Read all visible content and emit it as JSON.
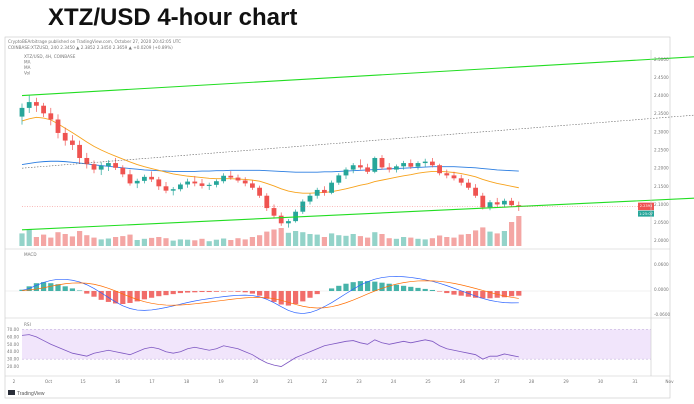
{
  "headline": "XTZ/USD 4-hour chart",
  "header_lines": {
    "publisher": "CryptoBEArbitrage published on TradingView.com, October 27, 2020 20:42:05 UTC",
    "symbol_line": "COINBASE:XTZUSD, 240  2.3450 ▲ 2.3852  2.3450  2.3659 ▲ +0.0209 (+0.89%)"
  },
  "legend": [
    "XTZ/USD, 4H, COINBASE",
    "MA",
    "MA",
    "Vol"
  ],
  "panes": {
    "macd_label": "MACD",
    "rsi_label": "RSI"
  },
  "price_labels": [
    "2.2393",
    "1:25:07"
  ],
  "branding": "TradingView",
  "colors": {
    "up": "#26a69a",
    "down": "#ef5350",
    "vol_up": "#93d3c9",
    "vol_down": "#f4a6a4",
    "ma_fast": "#f7a21b",
    "ma_slow": "#2a7de1",
    "channel": "#22dd22",
    "macd_line": "#2962ff",
    "signal_line": "#ff6d00",
    "rsi_line": "#7e57c2",
    "rsi_bg": "#f1e5fb"
  },
  "chart_data": {
    "type": "candlestick",
    "title": "XTZ/USD 4-hour chart",
    "x_ticks": [
      "2",
      "Oct",
      "15",
      "16",
      "17",
      "18",
      "19",
      "20",
      "21",
      "22",
      "23",
      "24",
      "25",
      "26",
      "27",
      "28",
      "29",
      "30",
      "31",
      "Nov",
      "2"
    ],
    "y_ticks": [
      "2.5000",
      "2.4500",
      "2.4000",
      "2.3500",
      "2.3000",
      "2.2500",
      "2.2000",
      "2.1500",
      "2.1000",
      "2.0500",
      "2.0000"
    ],
    "ylim": [
      1.98,
      2.52
    ],
    "candles": [
      [
        2.342,
        2.378,
        2.32,
        2.366
      ],
      [
        2.366,
        2.4,
        2.352,
        2.382
      ],
      [
        2.382,
        2.394,
        2.355,
        2.372
      ],
      [
        2.372,
        2.38,
        2.341,
        2.351
      ],
      [
        2.351,
        2.366,
        2.318,
        2.334
      ],
      [
        2.334,
        2.348,
        2.282,
        2.297
      ],
      [
        2.297,
        2.312,
        2.262,
        2.276
      ],
      [
        2.276,
        2.291,
        2.25,
        2.264
      ],
      [
        2.264,
        2.276,
        2.214,
        2.228
      ],
      [
        2.228,
        2.242,
        2.199,
        2.211
      ],
      [
        2.211,
        2.221,
        2.186,
        2.196
      ],
      [
        2.196,
        2.216,
        2.181,
        2.206
      ],
      [
        2.206,
        2.222,
        2.192,
        2.214
      ],
      [
        2.214,
        2.228,
        2.195,
        2.201
      ],
      [
        2.201,
        2.208,
        2.175,
        2.183
      ],
      [
        2.183,
        2.196,
        2.152,
        2.158
      ],
      [
        2.158,
        2.171,
        2.145,
        2.165
      ],
      [
        2.165,
        2.182,
        2.158,
        2.176
      ],
      [
        2.176,
        2.191,
        2.162,
        2.169
      ],
      [
        2.169,
        2.176,
        2.14,
        2.15
      ],
      [
        2.15,
        2.162,
        2.131,
        2.138
      ],
      [
        2.138,
        2.148,
        2.125,
        2.142
      ],
      [
        2.142,
        2.16,
        2.136,
        2.155
      ],
      [
        2.155,
        2.171,
        2.146,
        2.163
      ],
      [
        2.163,
        2.178,
        2.15,
        2.158
      ],
      [
        2.158,
        2.17,
        2.144,
        2.151
      ],
      [
        2.151,
        2.16,
        2.14,
        2.154
      ],
      [
        2.154,
        2.169,
        2.147,
        2.164
      ],
      [
        2.164,
        2.186,
        2.158,
        2.179
      ],
      [
        2.179,
        2.192,
        2.168,
        2.174
      ],
      [
        2.174,
        2.182,
        2.16,
        2.166
      ],
      [
        2.166,
        2.175,
        2.15,
        2.158
      ],
      [
        2.158,
        2.166,
        2.14,
        2.146
      ],
      [
        2.146,
        2.152,
        2.118,
        2.124
      ],
      [
        2.124,
        2.131,
        2.082,
        2.09
      ],
      [
        2.09,
        2.1,
        2.061,
        2.069
      ],
      [
        2.069,
        2.078,
        2.041,
        2.048
      ],
      [
        2.048,
        2.06,
        2.036,
        2.054
      ],
      [
        2.054,
        2.086,
        2.05,
        2.08
      ],
      [
        2.08,
        2.114,
        2.074,
        2.108
      ],
      [
        2.108,
        2.13,
        2.1,
        2.124
      ],
      [
        2.124,
        2.146,
        2.116,
        2.14
      ],
      [
        2.14,
        2.15,
        2.124,
        2.132
      ],
      [
        2.132,
        2.166,
        2.128,
        2.16
      ],
      [
        2.16,
        2.186,
        2.154,
        2.18
      ],
      [
        2.18,
        2.202,
        2.17,
        2.196
      ],
      [
        2.196,
        2.214,
        2.186,
        2.208
      ],
      [
        2.208,
        2.224,
        2.196,
        2.202
      ],
      [
        2.202,
        2.212,
        2.184,
        2.19
      ],
      [
        2.19,
        2.232,
        2.186,
        2.228
      ],
      [
        2.228,
        2.236,
        2.196,
        2.202
      ],
      [
        2.202,
        2.214,
        2.188,
        2.196
      ],
      [
        2.196,
        2.21,
        2.188,
        2.205
      ],
      [
        2.205,
        2.22,
        2.196,
        2.214
      ],
      [
        2.214,
        2.224,
        2.198,
        2.204
      ],
      [
        2.204,
        2.219,
        2.196,
        2.214
      ],
      [
        2.214,
        2.226,
        2.204,
        2.218
      ],
      [
        2.218,
        2.228,
        2.202,
        2.208
      ],
      [
        2.208,
        2.212,
        2.18,
        2.186
      ],
      [
        2.186,
        2.196,
        2.172,
        2.18
      ],
      [
        2.18,
        2.19,
        2.166,
        2.172
      ],
      [
        2.172,
        2.182,
        2.152,
        2.16
      ],
      [
        2.16,
        2.17,
        2.14,
        2.146
      ],
      [
        2.146,
        2.156,
        2.118,
        2.124
      ],
      [
        2.124,
        2.132,
        2.086,
        2.092
      ],
      [
        2.092,
        2.112,
        2.084,
        2.106
      ],
      [
        2.106,
        2.118,
        2.094,
        2.1
      ],
      [
        2.1,
        2.116,
        2.092,
        2.11
      ],
      [
        2.11,
        2.118,
        2.094,
        2.098
      ],
      [
        2.098,
        2.108,
        2.082,
        2.094
      ]
    ],
    "volume": [
      0.42,
      0.55,
      0.3,
      0.38,
      0.28,
      0.46,
      0.4,
      0.32,
      0.5,
      0.36,
      0.28,
      0.22,
      0.25,
      0.3,
      0.33,
      0.38,
      0.2,
      0.24,
      0.27,
      0.3,
      0.26,
      0.18,
      0.22,
      0.21,
      0.19,
      0.24,
      0.16,
      0.21,
      0.25,
      0.2,
      0.26,
      0.22,
      0.3,
      0.36,
      0.48,
      0.55,
      0.6,
      0.44,
      0.5,
      0.46,
      0.4,
      0.38,
      0.3,
      0.42,
      0.36,
      0.34,
      0.4,
      0.33,
      0.28,
      0.46,
      0.4,
      0.26,
      0.24,
      0.3,
      0.28,
      0.24,
      0.22,
      0.26,
      0.35,
      0.3,
      0.28,
      0.38,
      0.4,
      0.52,
      0.62,
      0.48,
      0.42,
      0.5,
      0.8,
      1.0
    ],
    "ma_fast": [
      2.33,
      2.336,
      2.34,
      2.338,
      2.333,
      2.322,
      2.31,
      2.298,
      2.285,
      2.272,
      2.26,
      2.25,
      2.241,
      2.233,
      2.225,
      2.217,
      2.21,
      2.204,
      2.199,
      2.194,
      2.189,
      2.184,
      2.181,
      2.178,
      2.176,
      2.174,
      2.172,
      2.171,
      2.171,
      2.171,
      2.17,
      2.169,
      2.167,
      2.164,
      2.158,
      2.151,
      2.143,
      2.137,
      2.133,
      2.131,
      2.131,
      2.132,
      2.133,
      2.135,
      2.139,
      2.143,
      2.148,
      2.153,
      2.157,
      2.163,
      2.167,
      2.171,
      2.175,
      2.179,
      2.182,
      2.186,
      2.189,
      2.191,
      2.191,
      2.19,
      2.188,
      2.185,
      2.181,
      2.176,
      2.169,
      2.163,
      2.158,
      2.154,
      2.15,
      2.146
    ],
    "ma_slow": [
      2.21,
      2.213,
      2.216,
      2.218,
      2.219,
      2.219,
      2.218,
      2.216,
      2.214,
      2.212,
      2.209,
      2.207,
      2.205,
      2.203,
      2.201,
      2.199,
      2.197,
      2.195,
      2.194,
      2.193,
      2.192,
      2.191,
      2.191,
      2.191,
      2.191,
      2.192,
      2.192,
      2.193,
      2.193,
      2.194,
      2.194,
      2.194,
      2.194,
      2.194,
      2.193,
      2.192,
      2.191,
      2.19,
      2.189,
      2.189,
      2.189,
      2.189,
      2.19,
      2.19,
      2.191,
      2.192,
      2.193,
      2.194,
      2.195,
      2.196,
      2.197,
      2.198,
      2.199,
      2.2,
      2.201,
      2.202,
      2.203,
      2.204,
      2.204,
      2.204,
      2.204,
      2.203,
      2.202,
      2.201,
      2.199,
      2.197,
      2.195,
      2.194,
      2.193,
      2.192
    ],
    "channel_lower": [
      [
        0,
        2.03
      ],
      [
        105,
        2.128
      ]
    ],
    "channel_upper": [
      [
        0,
        2.4
      ],
      [
        105,
        2.52
      ]
    ],
    "channel_mid_dotted": [
      [
        0,
        2.2
      ],
      [
        101,
        2.358
      ]
    ],
    "arrows": [
      [
        [
          101,
          2.106
        ],
        [
          102,
          2.348
        ]
      ],
      [
        [
          104,
          2.38
        ],
        [
          106,
          2.5
        ]
      ]
    ],
    "macd_histogram": [
      0.05,
      0.18,
      0.3,
      0.34,
      0.3,
      0.26,
      0.18,
      0.1,
      0.02,
      -0.1,
      -0.22,
      -0.34,
      -0.42,
      -0.48,
      -0.5,
      -0.46,
      -0.4,
      -0.32,
      -0.26,
      -0.2,
      -0.16,
      -0.12,
      -0.08,
      -0.06,
      -0.05,
      -0.04,
      -0.04,
      -0.03,
      -0.02,
      -0.02,
      -0.03,
      -0.05,
      -0.1,
      -0.18,
      -0.3,
      -0.42,
      -0.52,
      -0.56,
      -0.5,
      -0.4,
      -0.26,
      -0.12,
      0.0,
      0.1,
      0.2,
      0.28,
      0.34,
      0.38,
      0.38,
      0.36,
      0.32,
      0.28,
      0.24,
      0.2,
      0.16,
      0.12,
      0.08,
      0.04,
      -0.02,
      -0.08,
      -0.14,
      -0.18,
      -0.22,
      -0.26,
      -0.28,
      -0.28,
      -0.26,
      -0.24,
      -0.2,
      -0.18
    ],
    "rsi": [
      62,
      63,
      60,
      55,
      50,
      46,
      42,
      38,
      36,
      34,
      38,
      40,
      42,
      40,
      38,
      36,
      40,
      44,
      46,
      44,
      40,
      38,
      40,
      44,
      46,
      44,
      42,
      44,
      48,
      46,
      44,
      40,
      36,
      30,
      25,
      22,
      20,
      26,
      32,
      36,
      40,
      44,
      48,
      50,
      52,
      54,
      55,
      52,
      50,
      56,
      52,
      50,
      52,
      54,
      52,
      54,
      56,
      54,
      48,
      44,
      42,
      40,
      38,
      36,
      30,
      34,
      34,
      37,
      35,
      33
    ]
  }
}
